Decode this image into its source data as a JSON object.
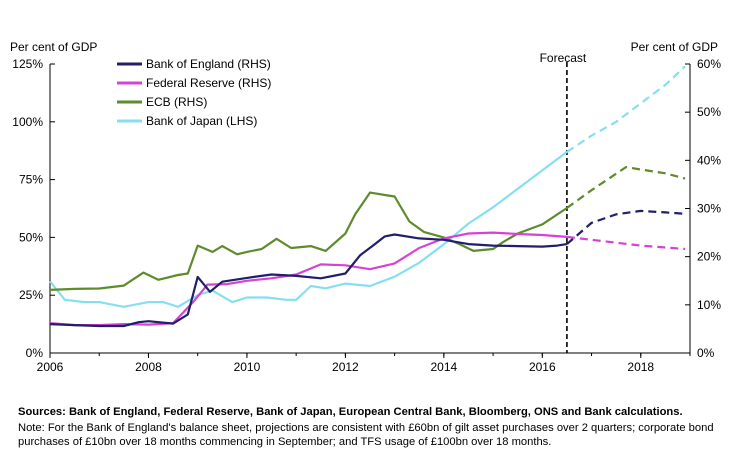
{
  "chart_data": {
    "type": "line",
    "title": "",
    "ylabel_left": "Per cent of GDP",
    "ylabel_right": "Per cent of GDP",
    "xlim": [
      2006,
      2019
    ],
    "ylim_left": [
      0,
      125
    ],
    "ylim_right": [
      0,
      60
    ],
    "x_ticks": [
      "2006",
      "2008",
      "2010",
      "2012",
      "2014",
      "2016",
      "2018"
    ],
    "y_ticks_left": [
      "0%",
      "25%",
      "50%",
      "75%",
      "100%",
      "125%"
    ],
    "y_ticks_right": [
      "0%",
      "10%",
      "20%",
      "30%",
      "40%",
      "50%",
      "60%"
    ],
    "forecast_label": "Forecast",
    "forecast_start": 2016.5,
    "legend_position": "top-left",
    "series": [
      {
        "name": "Bank of England (RHS)",
        "axis": "right",
        "color": "#1f1f6b",
        "actual": [
          [
            2006,
            6
          ],
          [
            2006.5,
            5.8
          ],
          [
            2007,
            5.6
          ],
          [
            2007.5,
            5.6
          ],
          [
            2007.8,
            6.4
          ],
          [
            2008,
            6.6
          ],
          [
            2008.5,
            6.1
          ],
          [
            2008.8,
            8
          ],
          [
            2009,
            15.8
          ],
          [
            2009.25,
            12.7
          ],
          [
            2009.5,
            14.8
          ],
          [
            2010,
            15.6
          ],
          [
            2010.5,
            16.3
          ],
          [
            2011,
            16
          ],
          [
            2011.5,
            15.5
          ],
          [
            2012,
            16.5
          ],
          [
            2012.3,
            20.3
          ],
          [
            2012.6,
            22.6
          ],
          [
            2012.8,
            24.2
          ],
          [
            2013,
            24.6
          ],
          [
            2013.5,
            23.8
          ],
          [
            2014,
            23.5
          ],
          [
            2014.5,
            22.6
          ],
          [
            2015,
            22.3
          ],
          [
            2015.5,
            22.2
          ],
          [
            2016,
            22.1
          ],
          [
            2016.3,
            22.3
          ],
          [
            2016.5,
            22.6
          ]
        ],
        "forecast": [
          [
            2016.5,
            22.6
          ],
          [
            2017,
            27
          ],
          [
            2017.5,
            28.8
          ],
          [
            2018,
            29.5
          ],
          [
            2018.5,
            29.2
          ],
          [
            2018.9,
            28.9
          ]
        ]
      },
      {
        "name": "Federal Reserve (RHS)",
        "axis": "right",
        "color": "#d444d4",
        "actual": [
          [
            2006,
            6.2
          ],
          [
            2006.5,
            5.8
          ],
          [
            2007,
            5.8
          ],
          [
            2007.5,
            6
          ],
          [
            2008,
            5.9
          ],
          [
            2008.5,
            6.2
          ],
          [
            2008.9,
            10.5
          ],
          [
            2009.2,
            14.2
          ],
          [
            2009.6,
            14.3
          ],
          [
            2010,
            15
          ],
          [
            2010.5,
            15.5
          ],
          [
            2011,
            16.3
          ],
          [
            2011.5,
            18.4
          ],
          [
            2012,
            18.2
          ],
          [
            2012.5,
            17.4
          ],
          [
            2013,
            18.6
          ],
          [
            2013.5,
            21.8
          ],
          [
            2014,
            23.8
          ],
          [
            2014.5,
            24.8
          ],
          [
            2015,
            25
          ],
          [
            2015.5,
            24.7
          ],
          [
            2016,
            24.5
          ],
          [
            2016.5,
            24.1
          ]
        ],
        "forecast": [
          [
            2016.5,
            24.1
          ],
          [
            2017,
            23.5
          ],
          [
            2017.5,
            22.9
          ],
          [
            2018,
            22.3
          ],
          [
            2018.5,
            21.9
          ],
          [
            2018.9,
            21.6
          ]
        ]
      },
      {
        "name": "ECB (RHS)",
        "axis": "right",
        "color": "#5e8b2c",
        "actual": [
          [
            2006,
            13.1
          ],
          [
            2006.5,
            13.3
          ],
          [
            2007,
            13.4
          ],
          [
            2007.5,
            14
          ],
          [
            2007.9,
            16.7
          ],
          [
            2008.2,
            15.2
          ],
          [
            2008.6,
            16.2
          ],
          [
            2008.8,
            16.5
          ],
          [
            2009,
            22.3
          ],
          [
            2009.3,
            21
          ],
          [
            2009.5,
            22.2
          ],
          [
            2009.8,
            20.5
          ],
          [
            2010,
            21
          ],
          [
            2010.3,
            21.6
          ],
          [
            2010.6,
            23.7
          ],
          [
            2010.9,
            21.8
          ],
          [
            2011.3,
            22.2
          ],
          [
            2011.6,
            21.2
          ],
          [
            2012,
            24.8
          ],
          [
            2012.2,
            28.8
          ],
          [
            2012.5,
            33.3
          ],
          [
            2012.8,
            32.8
          ],
          [
            2013,
            32.5
          ],
          [
            2013.3,
            27.3
          ],
          [
            2013.6,
            25.1
          ],
          [
            2014,
            24
          ],
          [
            2014.3,
            22.7
          ],
          [
            2014.6,
            21.2
          ],
          [
            2015,
            21.6
          ],
          [
            2015.2,
            23
          ],
          [
            2015.5,
            24.8
          ],
          [
            2016,
            26.7
          ],
          [
            2016.5,
            30.1
          ]
        ],
        "forecast": [
          [
            2016.5,
            30.1
          ],
          [
            2017,
            33.8
          ],
          [
            2017.7,
            38.6
          ],
          [
            2018,
            38.1
          ],
          [
            2018.5,
            37.3
          ],
          [
            2018.9,
            36.2
          ]
        ]
      },
      {
        "name": "Bank of Japan (LHS)",
        "axis": "left",
        "color": "#86dff0",
        "actual": [
          [
            2006,
            31
          ],
          [
            2006.3,
            23
          ],
          [
            2006.7,
            22
          ],
          [
            2007,
            22
          ],
          [
            2007.5,
            20
          ],
          [
            2008,
            22
          ],
          [
            2008.3,
            22
          ],
          [
            2008.6,
            20
          ],
          [
            2009,
            25
          ],
          [
            2009.3,
            27
          ],
          [
            2009.7,
            22
          ],
          [
            2010,
            24
          ],
          [
            2010.4,
            24
          ],
          [
            2010.8,
            23
          ],
          [
            2011,
            23
          ],
          [
            2011.3,
            29
          ],
          [
            2011.6,
            28
          ],
          [
            2012,
            30
          ],
          [
            2012.5,
            29
          ],
          [
            2013,
            33
          ],
          [
            2013.5,
            39
          ],
          [
            2014,
            47
          ],
          [
            2014.5,
            56
          ],
          [
            2015,
            63
          ],
          [
            2015.5,
            71
          ],
          [
            2016,
            79
          ],
          [
            2016.5,
            87
          ]
        ],
        "forecast": [
          [
            2016.5,
            87
          ],
          [
            2017,
            94
          ],
          [
            2017.5,
            100
          ],
          [
            2018,
            108
          ],
          [
            2018.5,
            116
          ],
          [
            2018.9,
            124
          ]
        ]
      }
    ]
  },
  "footer": {
    "sources": "Sources: Bank of England, Federal Reserve, Bank of Japan, European Central Bank, Bloomberg, ONS and Bank calculations.",
    "note": "Note: For the Bank of England's balance sheet, projections are consistent with £60bn of gilt asset purchases over 2 quarters; corporate bond purchases of £10bn over 18 months commencing in September; and TFS usage of £100bn over 18 months."
  }
}
